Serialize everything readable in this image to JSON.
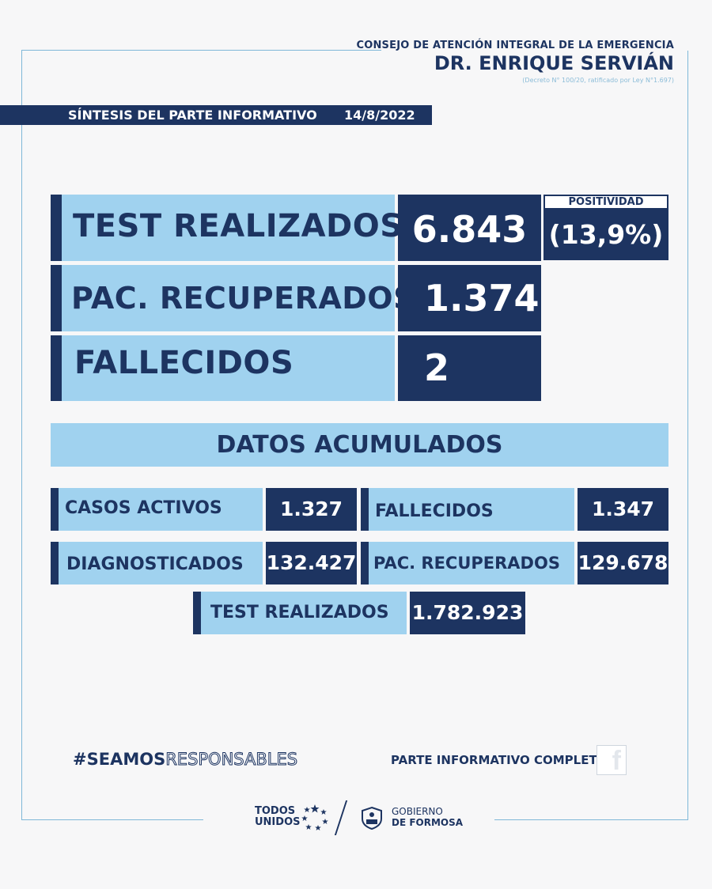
{
  "header": {
    "org_line": "CONSEJO DE ATENCIÓN INTEGRAL DE LA EMERGENCIA",
    "org_name": "DR. ENRIQUE SERVIÁN",
    "decree": "(Decreto N° 100/20, ratificado por Ley N°1.697)"
  },
  "synthesis": {
    "title": "SÍNTESIS DEL PARTE INFORMATIVO",
    "date": "14/8/2022"
  },
  "daily": {
    "tests_label": "TEST REALIZADOS",
    "tests_value": "6.843",
    "positivity_label": "POSITIVIDAD",
    "positivity_value": "(13,9%)",
    "recovered_label": "PAC. RECUPERADOS",
    "recovered_value": "1.374",
    "deaths_label": "FALLECIDOS",
    "deaths_value": "2"
  },
  "cumulative": {
    "title": "DATOS ACUMULADOS",
    "active_label": "CASOS ACTIVOS",
    "active_value": "1.327",
    "deaths_label": "FALLECIDOS",
    "deaths_value": "1.347",
    "diagnosed_label": "DIAGNOSTICADOS",
    "diagnosed_value": "132.427",
    "recovered_label": "PAC. RECUPERADOS",
    "recovered_value": "129.678",
    "tests_label": "TEST REALIZADOS",
    "tests_value": "1.782.923"
  },
  "footer": {
    "hashtag_a": "#SEAMOS",
    "hashtag_b": "RESPONSABLES",
    "full_report": "PARTE INFORMATIVO COMPLETO",
    "facebook_icon": "facebook-icon",
    "todos_1": "TODOS",
    "todos_2": "UNIDOS",
    "gob_1": "GOBIERNO",
    "gob_2": "DE FORMOSA"
  },
  "colors": {
    "navy": "#1d3461",
    "light_blue": "#a0d2ef",
    "frame": "#7fb8d8"
  }
}
